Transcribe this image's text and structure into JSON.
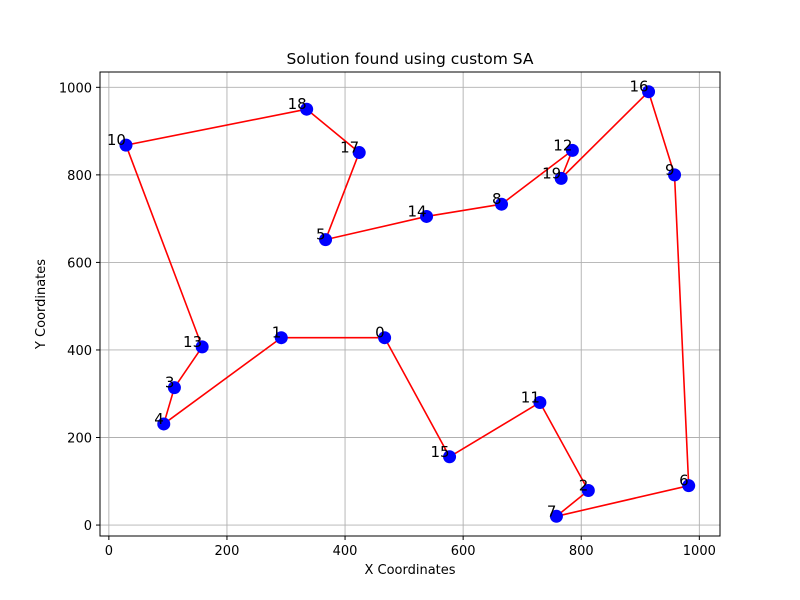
{
  "chart_data": {
    "type": "line",
    "title": "Solution found using custom SA",
    "xlabel": "X Coordinates",
    "ylabel": "Y Coordinates",
    "xlim": [
      -15,
      1035
    ],
    "ylim": [
      -25,
      1035
    ],
    "xticks": [
      0,
      200,
      400,
      600,
      800,
      1000
    ],
    "yticks": [
      0,
      200,
      400,
      600,
      800,
      1000
    ],
    "grid": true,
    "route_color": "#ff0000",
    "point_color": "#0000ff",
    "points": [
      {
        "id": "0",
        "x": 467,
        "y": 428
      },
      {
        "id": "1",
        "x": 292,
        "y": 428
      },
      {
        "id": "2",
        "x": 812,
        "y": 79
      },
      {
        "id": "3",
        "x": 111,
        "y": 314
      },
      {
        "id": "4",
        "x": 93,
        "y": 231
      },
      {
        "id": "5",
        "x": 367,
        "y": 652
      },
      {
        "id": "6",
        "x": 982,
        "y": 90
      },
      {
        "id": "7",
        "x": 758,
        "y": 20
      },
      {
        "id": "8",
        "x": 665,
        "y": 733
      },
      {
        "id": "9",
        "x": 958,
        "y": 800
      },
      {
        "id": "10",
        "x": 29,
        "y": 868
      },
      {
        "id": "11",
        "x": 730,
        "y": 280
      },
      {
        "id": "12",
        "x": 785,
        "y": 856
      },
      {
        "id": "13",
        "x": 158,
        "y": 407
      },
      {
        "id": "14",
        "x": 538,
        "y": 705
      },
      {
        "id": "15",
        "x": 577,
        "y": 156
      },
      {
        "id": "16",
        "x": 914,
        "y": 990
      },
      {
        "id": "17",
        "x": 424,
        "y": 851
      },
      {
        "id": "18",
        "x": 335,
        "y": 950
      },
      {
        "id": "19",
        "x": 766,
        "y": 792
      }
    ],
    "route": [
      "0",
      "15",
      "11",
      "2",
      "7",
      "6",
      "9",
      "16",
      "19",
      "12",
      "8",
      "14",
      "5",
      "17",
      "18",
      "10",
      "13",
      "3",
      "4",
      "1",
      "0"
    ]
  }
}
